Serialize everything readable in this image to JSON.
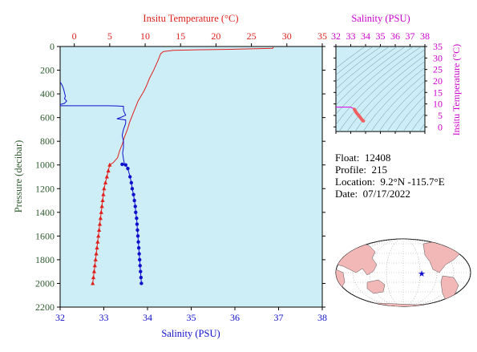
{
  "float_info": {
    "float_label": "Float:",
    "float_id": "12408",
    "profile_label": "Profile:",
    "profile_id": "215",
    "location_label": "Location:",
    "location": "9.2°N  -115.7°E",
    "date_label": "Date:",
    "date": "07/17/2022"
  },
  "colors": {
    "temperature": "#e0201c",
    "salinity": "#1010cc",
    "plot_bg": "#cdeef7",
    "pressure_axis": "#2e5a2e",
    "ts_axis": "#cc00cc",
    "land": "#f2b7b7"
  },
  "chart_data": [
    {
      "id": "profile",
      "type": "line",
      "title": "",
      "ylabel": "Pressure (decibar)",
      "ylim": [
        2200,
        0
      ],
      "yticks": [
        0,
        200,
        400,
        600,
        800,
        1000,
        1200,
        1400,
        1600,
        1800,
        2000,
        2200
      ],
      "temperature_axis": {
        "label": "Insitu Temperature (°C)",
        "range": [
          -2,
          35
        ],
        "ticks": [
          0,
          5,
          10,
          15,
          20,
          25,
          30,
          35
        ]
      },
      "salinity_axis": {
        "label": "Salinity (PSU)",
        "range": [
          32,
          38
        ],
        "ticks": [
          32,
          33,
          34,
          35,
          36,
          37,
          38
        ]
      },
      "temperature_series": {
        "line": [
          [
            28.1,
            5
          ],
          [
            28.0,
            15
          ],
          [
            22,
            24
          ],
          [
            18,
            27
          ],
          [
            14,
            32
          ],
          [
            12.6,
            42
          ],
          [
            12.2,
            60
          ],
          [
            11.8,
            120
          ],
          [
            11.2,
            200
          ],
          [
            10.6,
            270
          ],
          [
            10.2,
            330
          ],
          [
            9.8,
            380
          ],
          [
            9.4,
            420
          ],
          [
            9.0,
            460
          ],
          [
            8.6,
            520
          ],
          [
            8.2,
            580
          ],
          [
            7.8,
            640
          ],
          [
            7.5,
            700
          ],
          [
            7.1,
            760
          ],
          [
            6.8,
            820
          ],
          [
            6.4,
            880
          ],
          [
            6.1,
            940
          ],
          [
            5.5,
            980
          ],
          [
            5.0,
            1000
          ]
        ],
        "points": [
          [
            5.0,
            1000
          ],
          [
            4.8,
            1050
          ],
          [
            4.6,
            1100
          ],
          [
            4.4,
            1150
          ],
          [
            4.2,
            1200
          ],
          [
            4.1,
            1250
          ],
          [
            4.0,
            1300
          ],
          [
            3.9,
            1350
          ],
          [
            3.8,
            1400
          ],
          [
            3.7,
            1450
          ],
          [
            3.6,
            1500
          ],
          [
            3.5,
            1550
          ],
          [
            3.4,
            1600
          ],
          [
            3.3,
            1650
          ],
          [
            3.2,
            1700
          ],
          [
            3.1,
            1750
          ],
          [
            3.0,
            1800
          ],
          [
            2.9,
            1850
          ],
          [
            2.8,
            1900
          ],
          [
            2.7,
            1950
          ],
          [
            2.6,
            2000
          ]
        ]
      },
      "salinity_series": {
        "line": [
          [
            32.0,
            300
          ],
          [
            32.05,
            330
          ],
          [
            32.08,
            360
          ],
          [
            32.1,
            390
          ],
          [
            32.12,
            420
          ],
          [
            32.1,
            440
          ],
          [
            32.15,
            460
          ],
          [
            32.1,
            480
          ],
          [
            32.0,
            490
          ],
          [
            32.0,
            500
          ],
          [
            33.1,
            500
          ],
          [
            33.3,
            502
          ],
          [
            33.45,
            505
          ],
          [
            33.45,
            540
          ],
          [
            33.5,
            580
          ],
          [
            33.38,
            600
          ],
          [
            33.3,
            610
          ],
          [
            33.5,
            620
          ],
          [
            33.5,
            650
          ],
          [
            33.45,
            700
          ],
          [
            33.42,
            750
          ],
          [
            33.45,
            800
          ],
          [
            33.45,
            850
          ],
          [
            33.43,
            900
          ],
          [
            33.45,
            950
          ],
          [
            33.47,
            990
          ],
          [
            33.42,
            995
          ]
        ],
        "points": [
          [
            33.42,
            995
          ],
          [
            33.5,
            1000
          ],
          [
            33.55,
            1030
          ],
          [
            33.6,
            1100
          ],
          [
            33.63,
            1150
          ],
          [
            33.65,
            1200
          ],
          [
            33.68,
            1250
          ],
          [
            33.7,
            1300
          ],
          [
            33.72,
            1350
          ],
          [
            33.73,
            1400
          ],
          [
            33.75,
            1450
          ],
          [
            33.76,
            1500
          ],
          [
            33.77,
            1550
          ],
          [
            33.78,
            1600
          ],
          [
            33.79,
            1650
          ],
          [
            33.8,
            1700
          ],
          [
            33.81,
            1750
          ],
          [
            33.82,
            1800
          ],
          [
            33.83,
            1850
          ],
          [
            33.84,
            1900
          ],
          [
            33.85,
            1950
          ],
          [
            33.86,
            2000
          ]
        ]
      }
    },
    {
      "id": "ts_diagram",
      "type": "line",
      "title": "",
      "xlabel": "Salinity (PSU)",
      "ylabel": "Insitu Temperature (°C)",
      "xlim": [
        32,
        38
      ],
      "ylim": [
        -2,
        35
      ],
      "xticks": [
        32,
        33,
        34,
        35,
        36,
        37,
        38
      ],
      "yticks": [
        0,
        5,
        10,
        15,
        20,
        25,
        30,
        35
      ],
      "series": [
        {
          "line": [
            [
              32.0,
              8.6
            ],
            [
              33.0,
              8.6
            ],
            [
              33.1,
              8.2
            ],
            [
              33.2,
              8.1
            ],
            [
              33.25,
              7.6
            ]
          ],
          "thick": [
            [
              33.25,
              7.6
            ],
            [
              33.4,
              6.0
            ],
            [
              33.6,
              4.5
            ],
            [
              33.8,
              2.8
            ],
            [
              33.86,
              2.6
            ]
          ]
        }
      ]
    }
  ],
  "map": {
    "marker": "star"
  }
}
